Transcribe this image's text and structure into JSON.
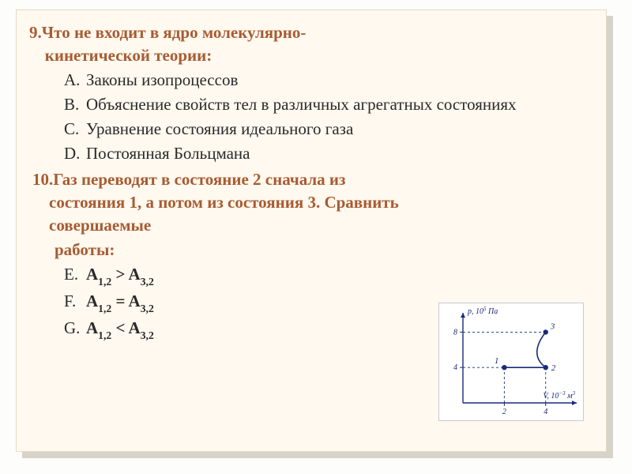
{
  "q9": {
    "number": "9.",
    "title_l1": "Что не входит в ядро молекулярно-",
    "title_l2": "кинетической теории:",
    "options": [
      {
        "letter": "A.",
        "text": "Законы изопроцессов"
      },
      {
        "letter": "B.",
        "text": "Объяснение свойств тел в различных агрегатных состояниях"
      },
      {
        "letter": "C.",
        "text": "Уравнение состояния идеального газа"
      },
      {
        "letter": "D.",
        "text": "Постоянная Больцмана"
      }
    ]
  },
  "q10": {
    "number": "10.",
    "title_l1": "Газ переводят в состояние 2 сначала из",
    "title_l2": "состояния 1, а потом из состояния 3. Сравнить",
    "title_l3": "совершаемые",
    "work_label": "работы:",
    "options": [
      {
        "letter": "E.",
        "a1": "A",
        "sub1": "1,2",
        "op": " > ",
        "a2": "A",
        "sub2": "3,2"
      },
      {
        "letter": "F.",
        "a1": "A",
        "sub1": "1,2",
        "op": " = ",
        "a2": "A",
        "sub2": "3,2"
      },
      {
        "letter": "G.",
        "a1": "A",
        "sub1": "1,2",
        "op": " < ",
        "a2": "A",
        "sub2": "3,2"
      }
    ]
  },
  "chart": {
    "type": "line",
    "y_label": "p, 10",
    "y_exp": "5",
    "y_unit": " Па",
    "x_label": "V, 10",
    "x_exp": "−3",
    "x_unit": " м",
    "x_unit_exp": "3",
    "x_ticks": [
      2,
      4
    ],
    "y_ticks": [
      4,
      8
    ],
    "xlim": [
      0,
      5.5
    ],
    "ylim": [
      0,
      10
    ],
    "points": [
      {
        "id": "1",
        "x": 2,
        "y": 4
      },
      {
        "id": "2",
        "x": 4,
        "y": 4
      },
      {
        "id": "3",
        "x": 4,
        "y": 8
      }
    ],
    "segments": [
      {
        "from": "1",
        "to": "2",
        "style": "line"
      },
      {
        "from": "3",
        "to": "2",
        "style": "curve"
      }
    ],
    "colors": {
      "axis": "#1a2a78",
      "curve": "#1a2a78",
      "point_fill": "#1a2a78",
      "text": "#1a2a78",
      "bg": "#ffffff"
    },
    "line_width": 1.6,
    "marker_radius": 3.2,
    "label_fontsize": 10
  }
}
